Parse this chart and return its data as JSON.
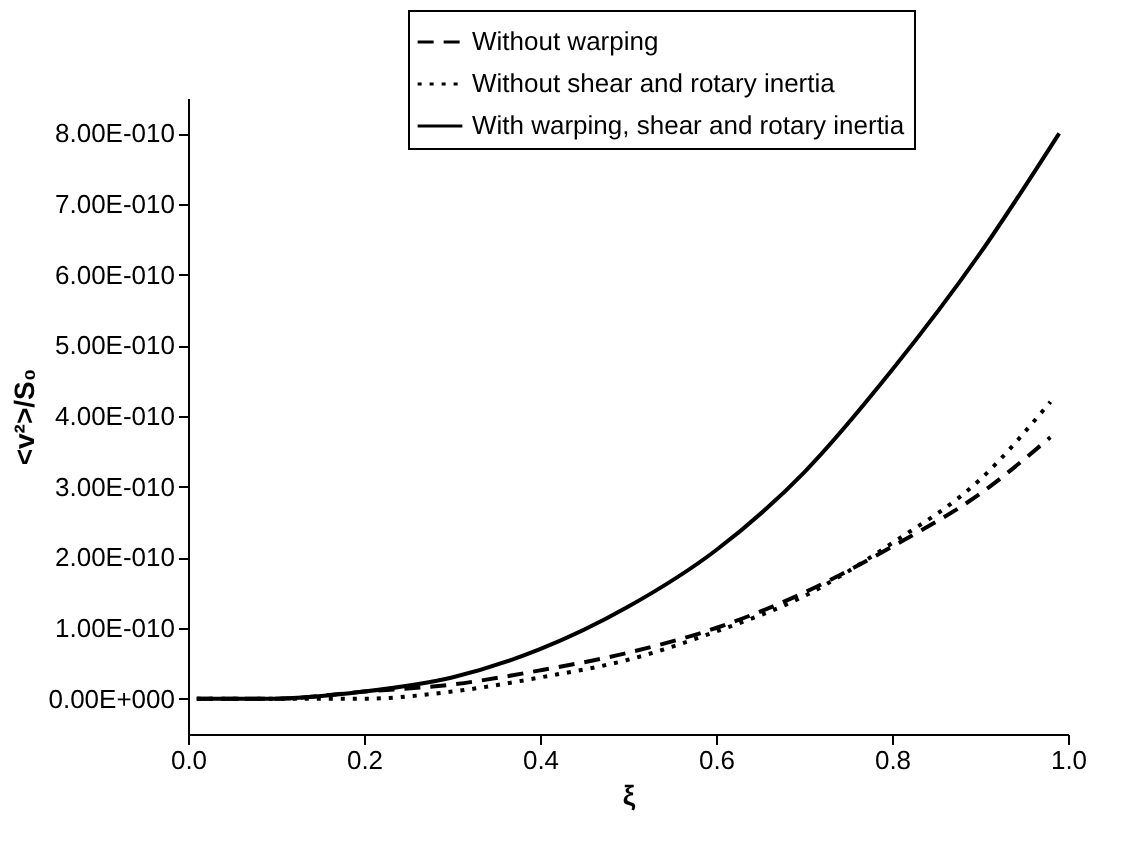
{
  "chart_data": {
    "type": "line",
    "xlabel": "ξ",
    "ylabel": "<v²>/S₀",
    "xlim": [
      0,
      1
    ],
    "xticks": [
      {
        "value": 0,
        "label": "0.0"
      },
      {
        "value": 0.2,
        "label": "0.2"
      },
      {
        "value": 0.4,
        "label": "0.4"
      },
      {
        "value": 0.6,
        "label": "0.6"
      },
      {
        "value": 0.8,
        "label": "0.8"
      },
      {
        "value": 1,
        "label": "1.0"
      }
    ],
    "ylim": [
      -5e-11,
      8.5e-10
    ],
    "yticks": [
      {
        "value": 0,
        "label": "0.00E+000"
      },
      {
        "value": 1e-10,
        "label": "1.00E-010"
      },
      {
        "value": 2e-10,
        "label": "2.00E-010"
      },
      {
        "value": 3e-10,
        "label": "3.00E-010"
      },
      {
        "value": 4e-10,
        "label": "4.00E-010"
      },
      {
        "value": 5e-10,
        "label": "5.00E-010"
      },
      {
        "value": 6e-10,
        "label": "6.00E-010"
      },
      {
        "value": 7e-10,
        "label": "7.00E-010"
      },
      {
        "value": 8e-10,
        "label": "8.00E-010"
      }
    ],
    "grid": false,
    "legend": "top right",
    "marker": "none",
    "series": [
      {
        "name": "Without warping",
        "color": "#000000",
        "line_style": "dashed",
        "x": [
          0.01,
          0.1,
          0.2,
          0.3,
          0.4,
          0.5,
          0.6,
          0.7,
          0.8,
          0.9,
          0.98
        ],
        "values": [
          0,
          0,
          1e-11,
          2e-11,
          4e-11,
          6.5e-11,
          1e-10,
          1.5e-10,
          2.15e-10,
          2.9e-10,
          3.7e-10
        ]
      },
      {
        "name": "Without shear and rotary inertia",
        "color": "#000000",
        "line_style": "dotted",
        "x": [
          0.01,
          0.1,
          0.2,
          0.3,
          0.4,
          0.5,
          0.6,
          0.7,
          0.8,
          0.9,
          0.98
        ],
        "values": [
          0,
          0,
          0,
          1e-11,
          3e-11,
          5.5e-11,
          9.5e-11,
          1.45e-10,
          2.2e-10,
          3.1e-10,
          4.2e-10
        ]
      },
      {
        "name": "With warping, shear and rotary inertia",
        "color": "#000000",
        "line_style": "solid",
        "x": [
          0.01,
          0.1,
          0.2,
          0.3,
          0.4,
          0.5,
          0.6,
          0.7,
          0.8,
          0.9,
          0.99
        ],
        "values": [
          0,
          0,
          1e-11,
          3e-11,
          7e-11,
          1.3e-10,
          2.1e-10,
          3.2e-10,
          4.65e-10,
          6.3e-10,
          8e-10
        ]
      }
    ]
  }
}
